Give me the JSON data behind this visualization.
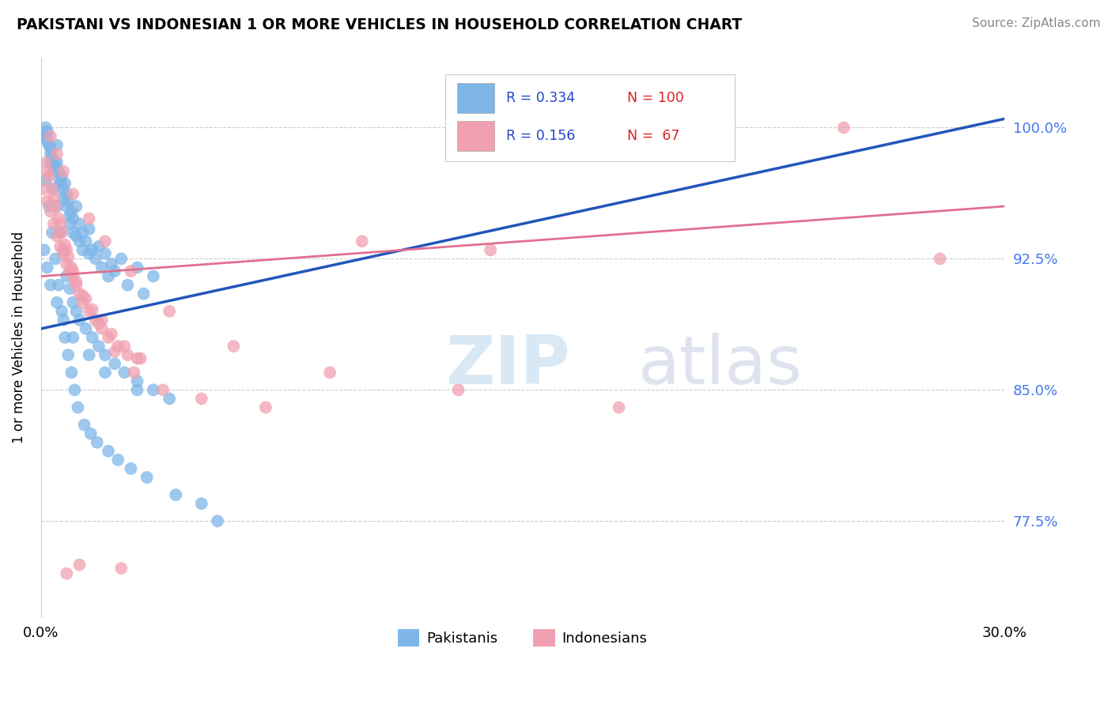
{
  "title": "PAKISTANI VS INDONESIAN 1 OR MORE VEHICLES IN HOUSEHOLD CORRELATION CHART",
  "source": "Source: ZipAtlas.com",
  "ylabel": "1 or more Vehicles in Household",
  "ytick_labels": [
    "77.5%",
    "85.0%",
    "92.5%",
    "100.0%"
  ],
  "ytick_values": [
    77.5,
    85.0,
    92.5,
    100.0
  ],
  "xmin": 0.0,
  "xmax": 30.0,
  "ymin": 72.0,
  "ymax": 104.0,
  "r_pakistani": 0.334,
  "n_pakistani": 100,
  "r_indonesian": 0.156,
  "n_indonesian": 67,
  "color_pakistani": "#7eb6e8",
  "color_indonesian": "#f0a0b0",
  "color_line_pakistani": "#2255bb",
  "color_line_indonesian": "#e07090",
  "legend_label_pakistani": "Pakistanis",
  "legend_label_indonesian": "Indonesians",
  "pak_trend_x0": 0.0,
  "pak_trend_y0": 88.5,
  "pak_trend_x1": 30.0,
  "pak_trend_y1": 100.5,
  "ind_trend_x0": 0.0,
  "ind_trend_y0": 91.5,
  "ind_trend_x1": 30.0,
  "ind_trend_y1": 95.5,
  "pakistani_x": [
    0.1,
    0.15,
    0.2,
    0.2,
    0.25,
    0.3,
    0.3,
    0.35,
    0.4,
    0.4,
    0.45,
    0.5,
    0.5,
    0.55,
    0.6,
    0.6,
    0.65,
    0.7,
    0.7,
    0.75,
    0.8,
    0.8,
    0.85,
    0.9,
    0.9,
    0.95,
    1.0,
    1.0,
    1.1,
    1.1,
    1.2,
    1.2,
    1.3,
    1.3,
    1.4,
    1.5,
    1.5,
    1.6,
    1.7,
    1.8,
    1.9,
    2.0,
    2.1,
    2.2,
    2.3,
    2.5,
    2.7,
    3.0,
    3.2,
    3.5,
    0.2,
    0.3,
    0.4,
    0.5,
    0.6,
    0.7,
    0.8,
    0.9,
    1.0,
    1.1,
    1.2,
    1.4,
    1.6,
    1.8,
    2.0,
    2.3,
    2.6,
    3.0,
    3.5,
    4.0,
    0.15,
    0.25,
    0.35,
    0.45,
    0.55,
    0.65,
    0.75,
    0.85,
    0.95,
    1.05,
    1.15,
    1.35,
    1.55,
    1.75,
    2.1,
    2.4,
    2.8,
    3.3,
    4.2,
    5.0,
    0.1,
    0.2,
    0.3,
    0.5,
    0.7,
    1.0,
    1.5,
    2.0,
    3.0,
    5.5
  ],
  "pakistani_y": [
    99.5,
    100.0,
    99.8,
    99.2,
    99.0,
    98.8,
    98.5,
    98.3,
    97.5,
    98.0,
    97.8,
    99.0,
    98.0,
    97.5,
    97.0,
    96.8,
    97.2,
    96.5,
    96.0,
    96.8,
    95.5,
    96.2,
    95.8,
    95.0,
    94.5,
    95.2,
    94.8,
    94.0,
    95.5,
    93.8,
    94.5,
    93.5,
    94.0,
    93.0,
    93.5,
    94.2,
    92.8,
    93.0,
    92.5,
    93.2,
    92.0,
    92.8,
    91.5,
    92.2,
    91.8,
    92.5,
    91.0,
    92.0,
    90.5,
    91.5,
    99.5,
    98.0,
    96.5,
    95.5,
    94.0,
    93.0,
    91.5,
    90.8,
    90.0,
    89.5,
    89.0,
    88.5,
    88.0,
    87.5,
    87.0,
    86.5,
    86.0,
    85.5,
    85.0,
    84.5,
    97.0,
    95.5,
    94.0,
    92.5,
    91.0,
    89.5,
    88.0,
    87.0,
    86.0,
    85.0,
    84.0,
    83.0,
    82.5,
    82.0,
    81.5,
    81.0,
    80.5,
    80.0,
    79.0,
    78.5,
    93.0,
    92.0,
    91.0,
    90.0,
    89.0,
    88.0,
    87.0,
    86.0,
    85.0,
    77.5
  ],
  "indonesian_x": [
    0.1,
    0.2,
    0.3,
    0.4,
    0.5,
    0.6,
    0.7,
    0.8,
    0.9,
    1.0,
    1.1,
    1.2,
    1.3,
    1.5,
    1.7,
    1.9,
    2.1,
    2.4,
    2.7,
    3.0,
    0.15,
    0.25,
    0.35,
    0.45,
    0.55,
    0.65,
    0.75,
    0.85,
    0.95,
    1.1,
    1.3,
    1.6,
    1.9,
    2.2,
    2.6,
    3.1,
    0.2,
    0.4,
    0.6,
    0.8,
    1.0,
    1.4,
    1.8,
    2.3,
    2.9,
    3.8,
    5.0,
    7.0,
    10.0,
    14.0,
    0.3,
    0.5,
    0.7,
    1.0,
    1.5,
    2.0,
    2.8,
    4.0,
    6.0,
    9.0,
    13.0,
    18.0,
    25.0,
    28.0,
    0.8,
    1.2,
    2.5
  ],
  "indonesian_y": [
    96.5,
    95.8,
    95.2,
    94.5,
    93.8,
    93.2,
    92.8,
    92.2,
    91.8,
    91.5,
    91.0,
    90.5,
    90.0,
    89.5,
    89.0,
    88.5,
    88.0,
    87.5,
    87.0,
    86.8,
    98.0,
    97.2,
    96.5,
    95.5,
    94.8,
    94.0,
    93.3,
    92.6,
    92.0,
    91.2,
    90.4,
    89.6,
    89.0,
    88.2,
    87.5,
    86.8,
    97.5,
    96.0,
    94.5,
    93.0,
    91.8,
    90.2,
    88.8,
    87.2,
    86.0,
    85.0,
    84.5,
    84.0,
    93.5,
    93.0,
    99.5,
    98.5,
    97.5,
    96.2,
    94.8,
    93.5,
    91.8,
    89.5,
    87.5,
    86.0,
    85.0,
    84.0,
    100.0,
    92.5,
    74.5,
    75.0,
    74.8
  ]
}
